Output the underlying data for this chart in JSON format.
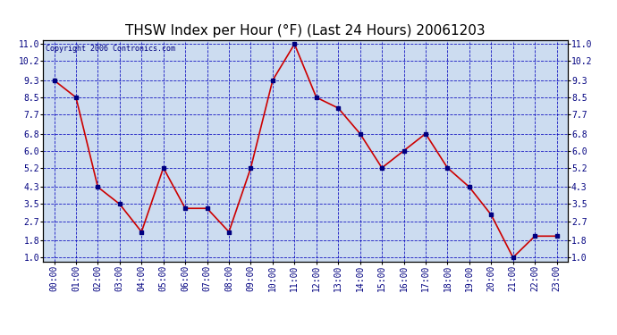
{
  "title": "THSW Index per Hour (°F) (Last 24 Hours) 20061203",
  "copyright": "Copyright 2006 Contronics.com",
  "hours": [
    "00:00",
    "01:00",
    "02:00",
    "03:00",
    "04:00",
    "05:00",
    "06:00",
    "07:00",
    "08:00",
    "09:00",
    "10:00",
    "11:00",
    "12:00",
    "13:00",
    "14:00",
    "15:00",
    "16:00",
    "17:00",
    "18:00",
    "19:00",
    "20:00",
    "21:00",
    "22:00",
    "23:00"
  ],
  "values": [
    9.3,
    8.5,
    4.3,
    3.5,
    2.2,
    5.2,
    3.3,
    3.3,
    2.2,
    5.2,
    9.3,
    11.0,
    8.5,
    8.0,
    6.8,
    5.2,
    6.0,
    6.8,
    5.2,
    4.3,
    3.0,
    1.0,
    2.0,
    2.0
  ],
  "y_ticks": [
    1.0,
    1.8,
    2.7,
    3.5,
    4.3,
    5.2,
    6.0,
    6.8,
    7.7,
    8.5,
    9.3,
    10.2,
    11.0
  ],
  "ylim": [
    0.82,
    11.18
  ],
  "line_color": "#cc0000",
  "marker_color": "#000080",
  "fig_bg_color": "#ffffff",
  "plot_bg": "#ccdcf0",
  "grid_color": "#0000bb",
  "border_color": "#000000",
  "title_color": "#000000",
  "copyright_color": "#000080",
  "tick_label_color": "#000080",
  "title_fontsize": 11,
  "tick_fontsize": 7,
  "copyright_fontsize": 6
}
